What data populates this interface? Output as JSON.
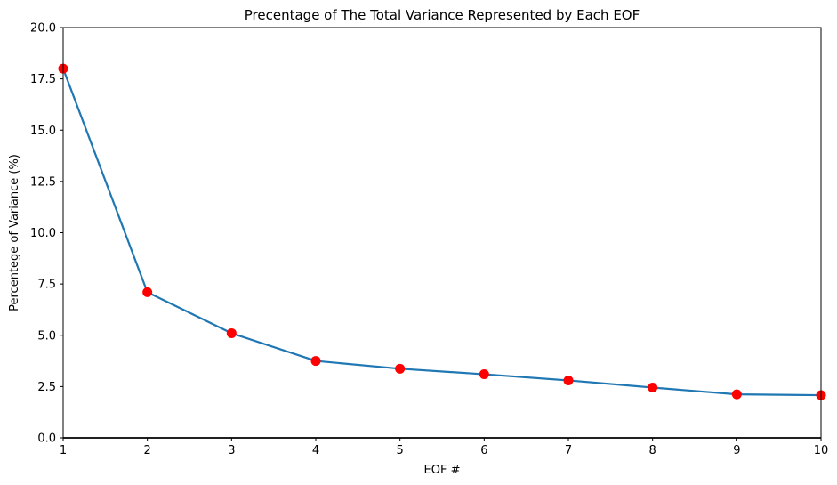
{
  "chart_data": {
    "type": "line",
    "title": "Precentage of The Total Variance Represented by Each EOF",
    "xlabel": "EOF #",
    "ylabel": "Percentege of Variance (%)",
    "x": [
      1,
      2,
      3,
      4,
      5,
      6,
      7,
      8,
      9,
      10
    ],
    "series": [
      {
        "values": [
          18.0,
          7.1,
          5.1,
          3.75,
          3.37,
          3.1,
          2.8,
          2.45,
          2.12,
          2.08
        ],
        "line_color": "#1f77b4",
        "marker_color": "#ff0000"
      }
    ],
    "xlim": [
      1,
      10
    ],
    "ylim": [
      0,
      20
    ],
    "xticks": [
      1,
      2,
      3,
      4,
      5,
      6,
      7,
      8,
      9,
      10
    ],
    "xtick_labels": [
      "1",
      "2",
      "3",
      "4",
      "5",
      "6",
      "7",
      "8",
      "9",
      "10"
    ],
    "yticks": [
      0,
      2.5,
      5,
      7.5,
      10,
      12.5,
      15,
      17.5,
      20
    ],
    "ytick_labels": [
      "0.0",
      "2.5",
      "5.0",
      "7.5",
      "10.0",
      "12.5",
      "15.0",
      "17.5",
      "20.0"
    ],
    "grid": false,
    "legend": "none"
  }
}
